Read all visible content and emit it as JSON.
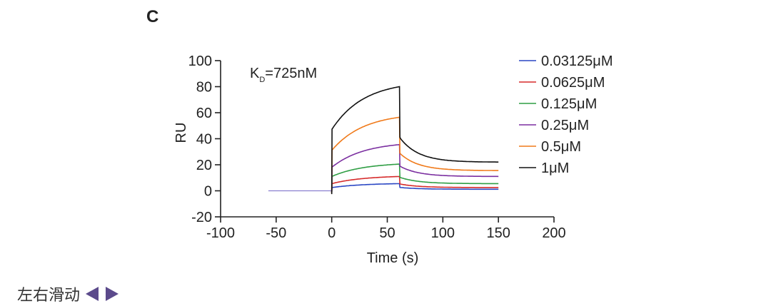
{
  "panel_label": "C",
  "footer": {
    "slide_hint": "左右滑动",
    "left_arrow_icon": "triangle-left-icon",
    "right_arrow_icon": "triangle-right-icon",
    "arrow_color": "#5b4a8b"
  },
  "chart_data": {
    "type": "line",
    "title": "",
    "annotation": {
      "prefix": "K",
      "subscript": "D",
      "suffix": "=725nM"
    },
    "xlabel": "Time (s)",
    "ylabel": "RU",
    "xlim": [
      -100,
      200
    ],
    "ylim": [
      -20,
      100
    ],
    "xticks": [
      "-100",
      "-50",
      "0",
      "50",
      "100",
      "150",
      "200"
    ],
    "yticks": [
      "-20",
      "0",
      "20",
      "40",
      "60",
      "80",
      "100"
    ],
    "grid": false,
    "legend_position": "right",
    "association_end_s": 61,
    "baseline_start_s": -57,
    "curve_end_s": 150,
    "baseline_color": "#8a7fd0",
    "series": [
      {
        "name": "0.03125μM",
        "color": "#2a47c4",
        "start": 2.5,
        "peak": 5.5,
        "plateau": 1.2
      },
      {
        "name": "0.0625μM",
        "color": "#d62a2a",
        "start": 5.5,
        "peak": 11,
        "plateau": 2.5
      },
      {
        "name": "0.125μM",
        "color": "#2f9e44",
        "start": 11,
        "peak": 20.5,
        "plateau": 5.5
      },
      {
        "name": "0.25μM",
        "color": "#7b2fa0",
        "start": 18,
        "peak": 35.5,
        "plateau": 11
      },
      {
        "name": "0.5μM",
        "color": "#f07a1a",
        "start": 31,
        "peak": 56.5,
        "plateau": 15.5
      },
      {
        "name": "1μM",
        "color": "#111111",
        "start": 47,
        "peak": 80,
        "plateau": 22
      }
    ]
  }
}
